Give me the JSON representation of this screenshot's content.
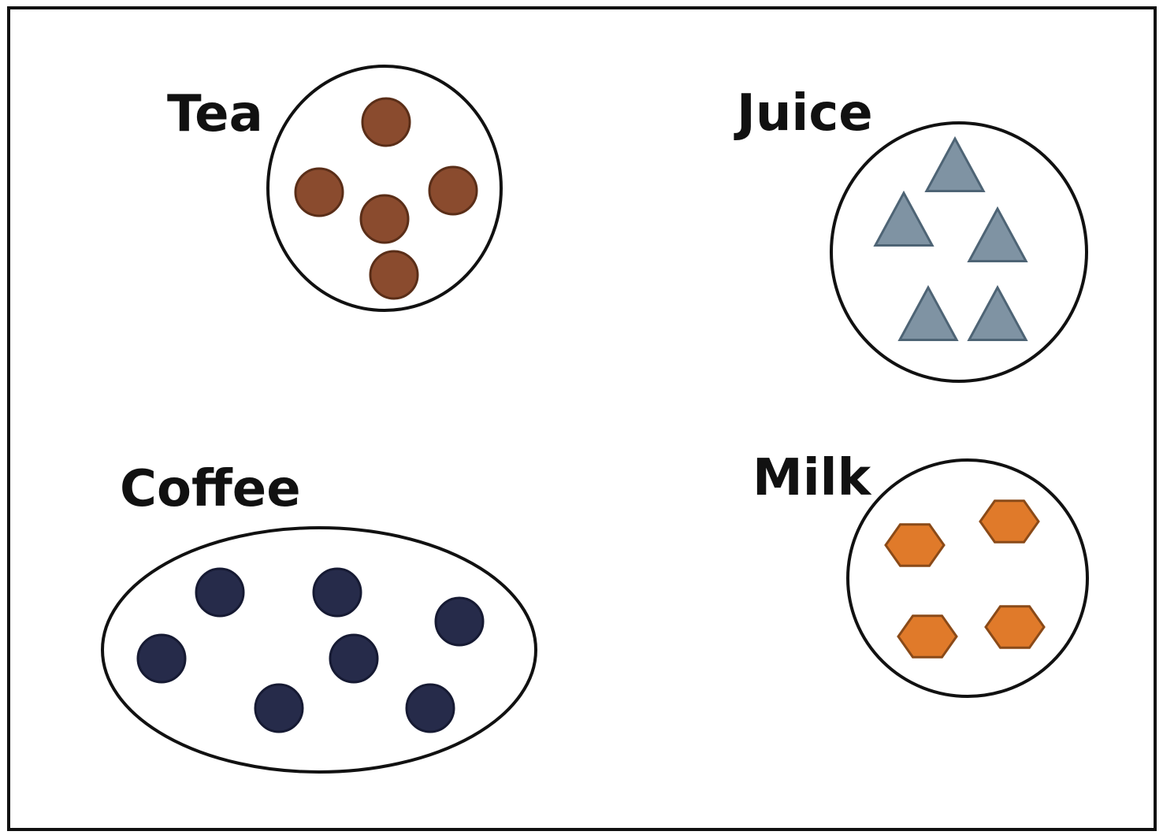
{
  "groups": {
    "tea": {
      "label": "Tea",
      "shape": "circle",
      "count": 5,
      "color": "#8a4b2e",
      "stroke": "#5a2e18"
    },
    "juice": {
      "label": "Juice",
      "shape": "triangle",
      "count": 5,
      "color": "#7f93a3",
      "stroke": "#4e6475"
    },
    "coffee": {
      "label": "Coffee",
      "shape": "circle",
      "count": 7,
      "color": "#262b4a",
      "stroke": "#161a33"
    },
    "milk": {
      "label": "Milk",
      "shape": "hexagon",
      "count": 4,
      "color": "#e07a2a",
      "stroke": "#8a4a18"
    }
  }
}
